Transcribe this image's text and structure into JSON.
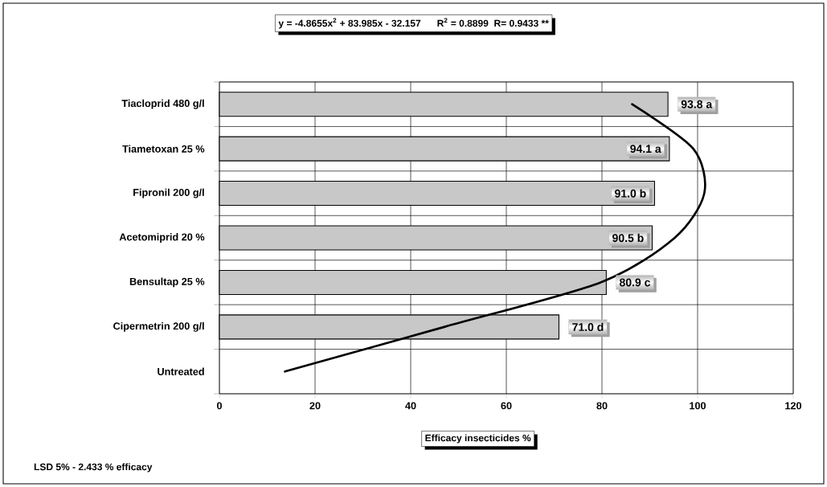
{
  "chart_data": {
    "type": "bar",
    "orientation": "horizontal",
    "categories": [
      "Tiacloprid 480 g/l",
      "Tiametoxan 25 %",
      "Fipronil 200 g/l",
      "Acetomiprid 20 %",
      "Bensultap 25 %",
      "Cipermetrin 200 g/l",
      "Untreated"
    ],
    "series": [
      {
        "color": "#c8c8c8",
        "values": [
          93.8,
          94.1,
          91.0,
          90.5,
          80.9,
          71.0,
          null
        ],
        "value_labels": [
          "93.8 a",
          "94.1 a",
          "91.0 b",
          "90.5 b",
          "80.9 c",
          "71.0 d",
          null
        ]
      },
      {
        "type": "line",
        "color": "#000000",
        "values": [
          86.3,
          99.1,
          101.4,
          95.2,
          79.7,
          47,
          13.7
        ]
      }
    ],
    "xlim": [
      0,
      120
    ],
    "xticks": [
      0,
      20,
      40,
      60,
      80,
      100,
      120
    ],
    "xlabel": "Efficacy  insecticides  %",
    "grid": true,
    "annotations": [
      "y = -4.8655x$^{2}$ + 83.985x - 32.157      R$^{2}$ = 0.8899  R= 0.9433 **",
      "LSD 5% - 2.433 % efficacy"
    ]
  }
}
